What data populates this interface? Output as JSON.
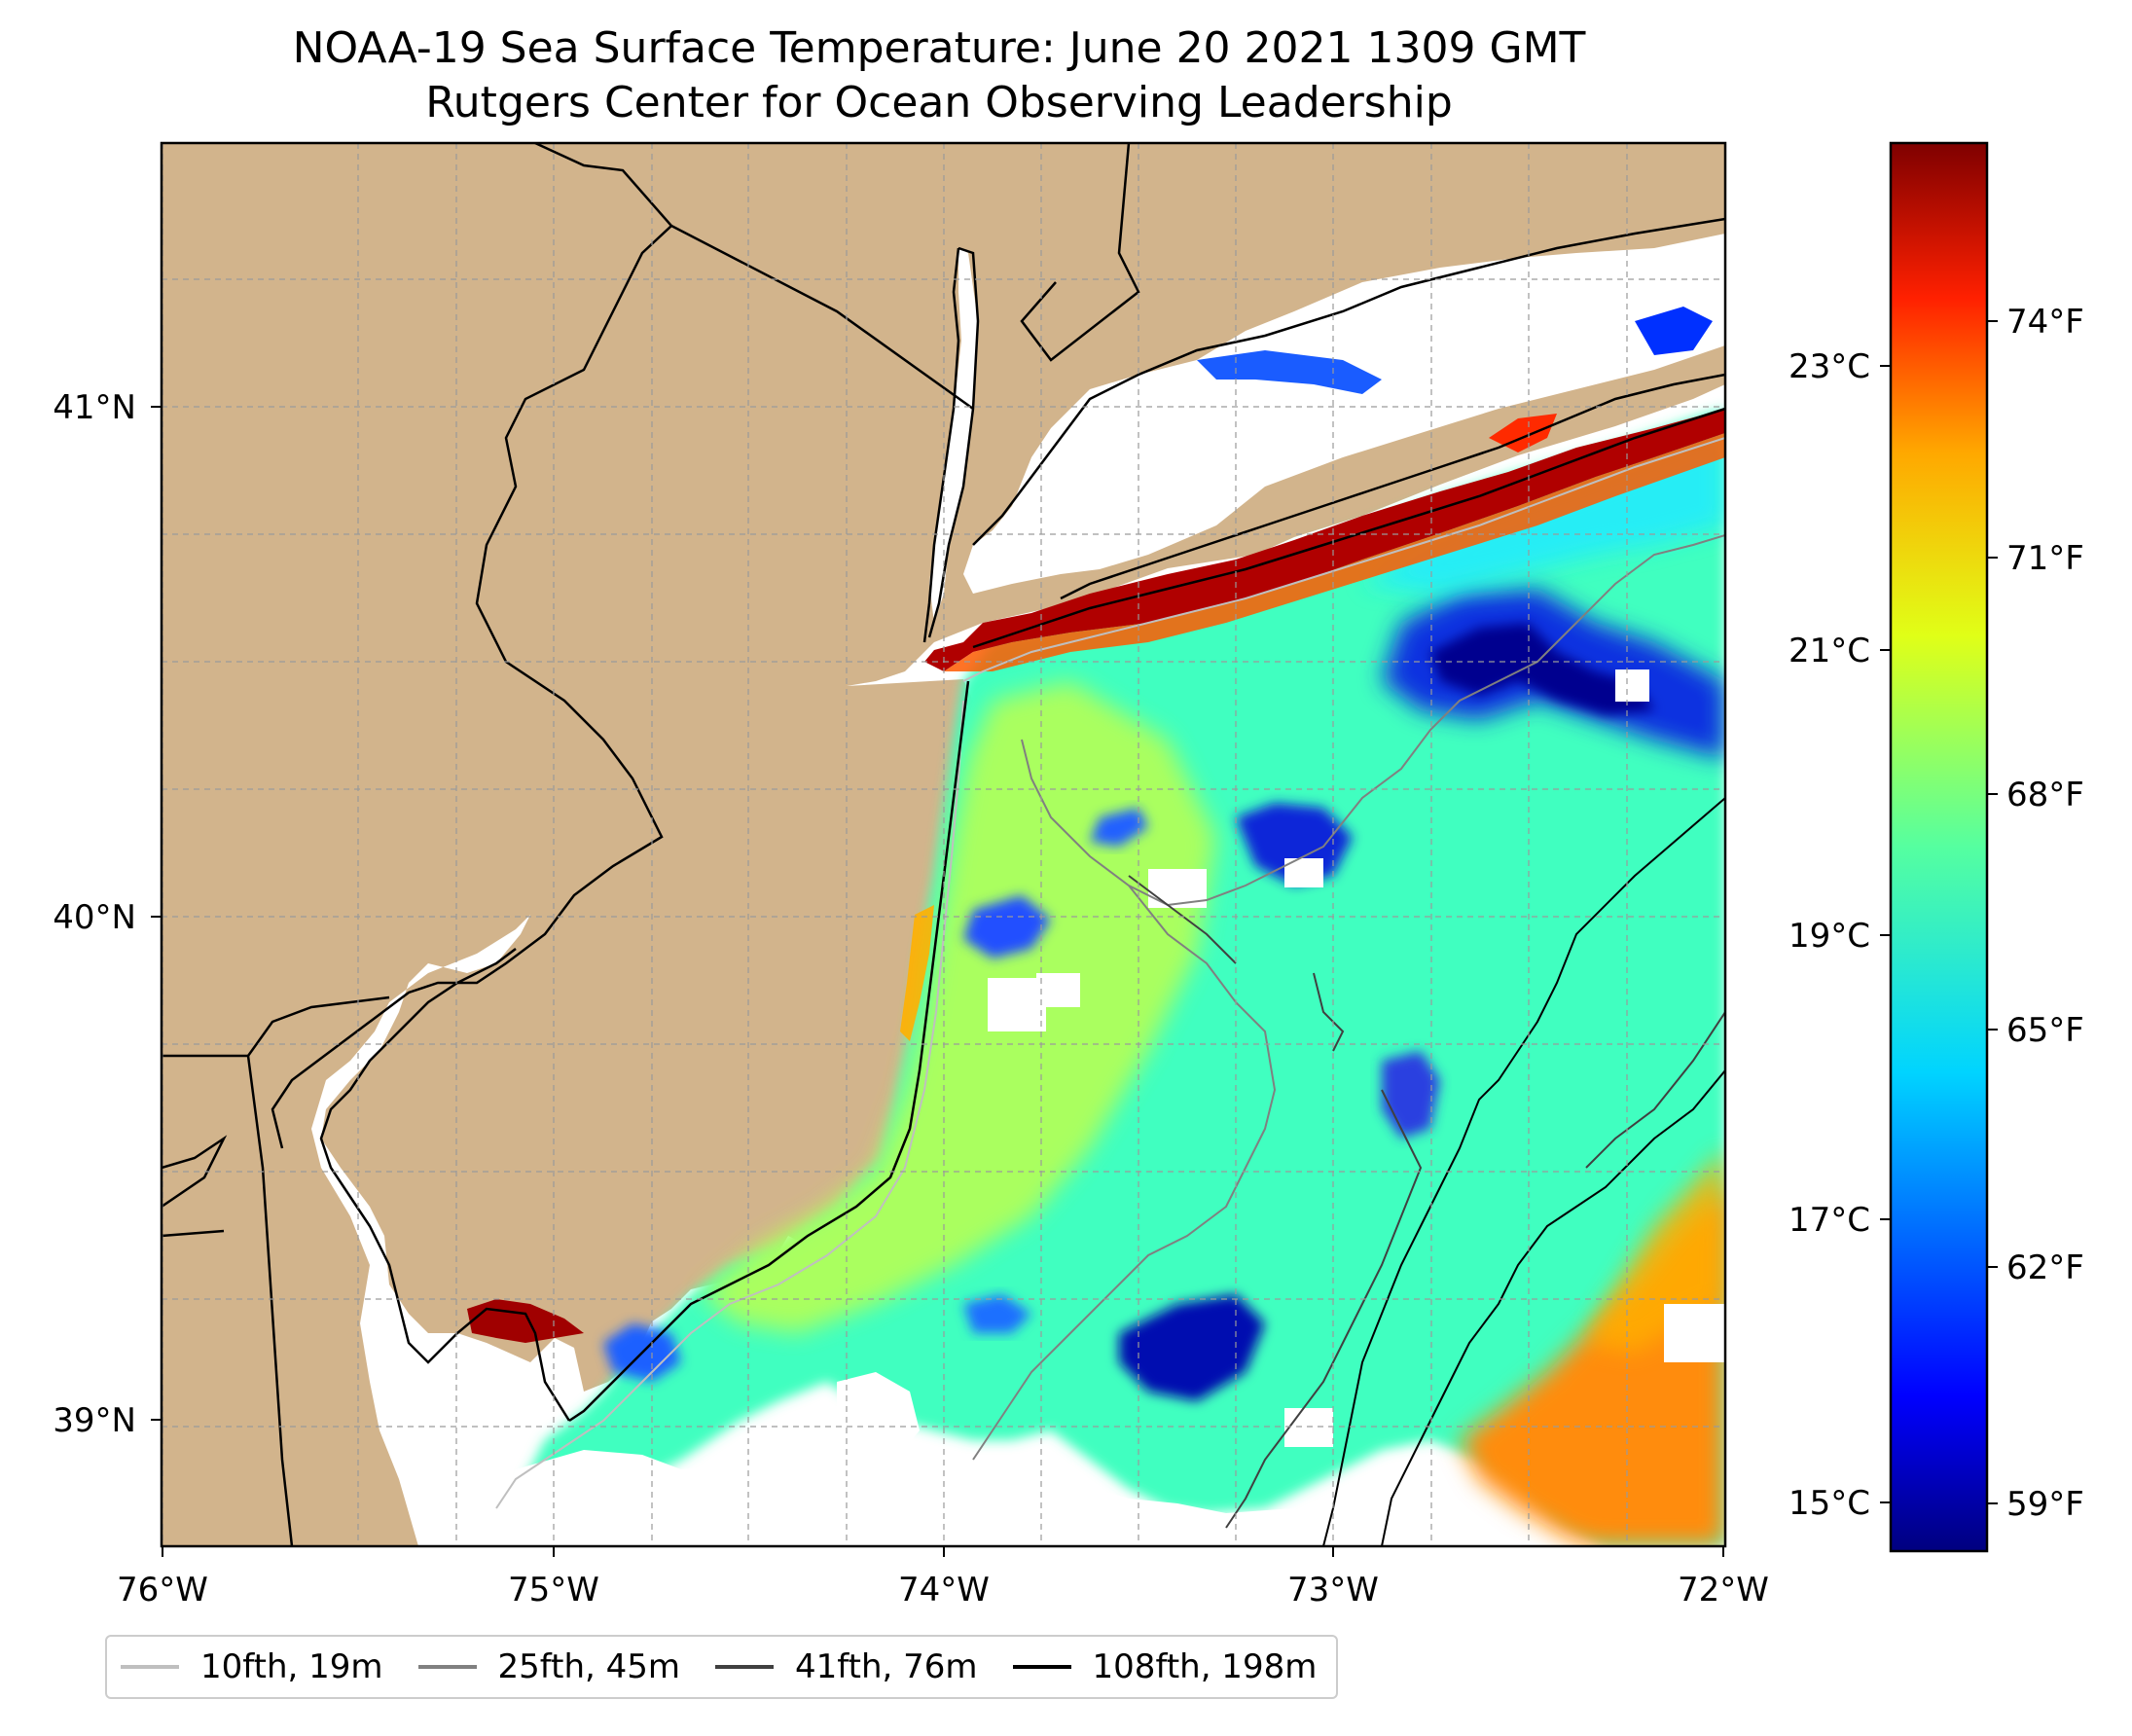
{
  "title": {
    "line1": "NOAA-19 Sea Surface Temperature: June 20 2021 1309 GMT",
    "line2": "Rutgers Center for Ocean Observing Leadership"
  },
  "map": {
    "extent": {
      "lon_min": -76.0,
      "lon_max": -72.0,
      "lat_min": 38.75,
      "lat_max": 41.5
    },
    "longitude_labels": [
      "76°W",
      "75°W",
      "74°W",
      "73°W",
      "72°W"
    ],
    "latitude_labels": [
      "39°N",
      "40°N",
      "41°N"
    ],
    "land_color": "#d2b48c",
    "coastline_color": "#000000",
    "gridline_style": "dashed gray",
    "colormap": "jet",
    "no_data_color": "#ffffff"
  },
  "colorbar": {
    "celsius_labels": [
      "15°C",
      "17°C",
      "19°C",
      "21°C",
      "23°C"
    ],
    "fahrenheit_labels": [
      "59°F",
      "62°F",
      "65°F",
      "68°F",
      "71°F",
      "74°F"
    ],
    "range_fahrenheit": [
      57.9,
      76.0
    ],
    "stops": [
      "#00007f",
      "#0000ff",
      "#007fff",
      "#00ffff",
      "#7fff7f",
      "#ffff00",
      "#ff7f00",
      "#ff0000",
      "#7f0000"
    ]
  },
  "legend": {
    "entries": [
      {
        "label": "10fth, 19m",
        "color": "#bfbfbf"
      },
      {
        "label": "25fth, 45m",
        "color": "#808080"
      },
      {
        "label": "41fth, 76m",
        "color": "#404040"
      },
      {
        "label": "108fth, 198m",
        "color": "#000000"
      }
    ]
  }
}
